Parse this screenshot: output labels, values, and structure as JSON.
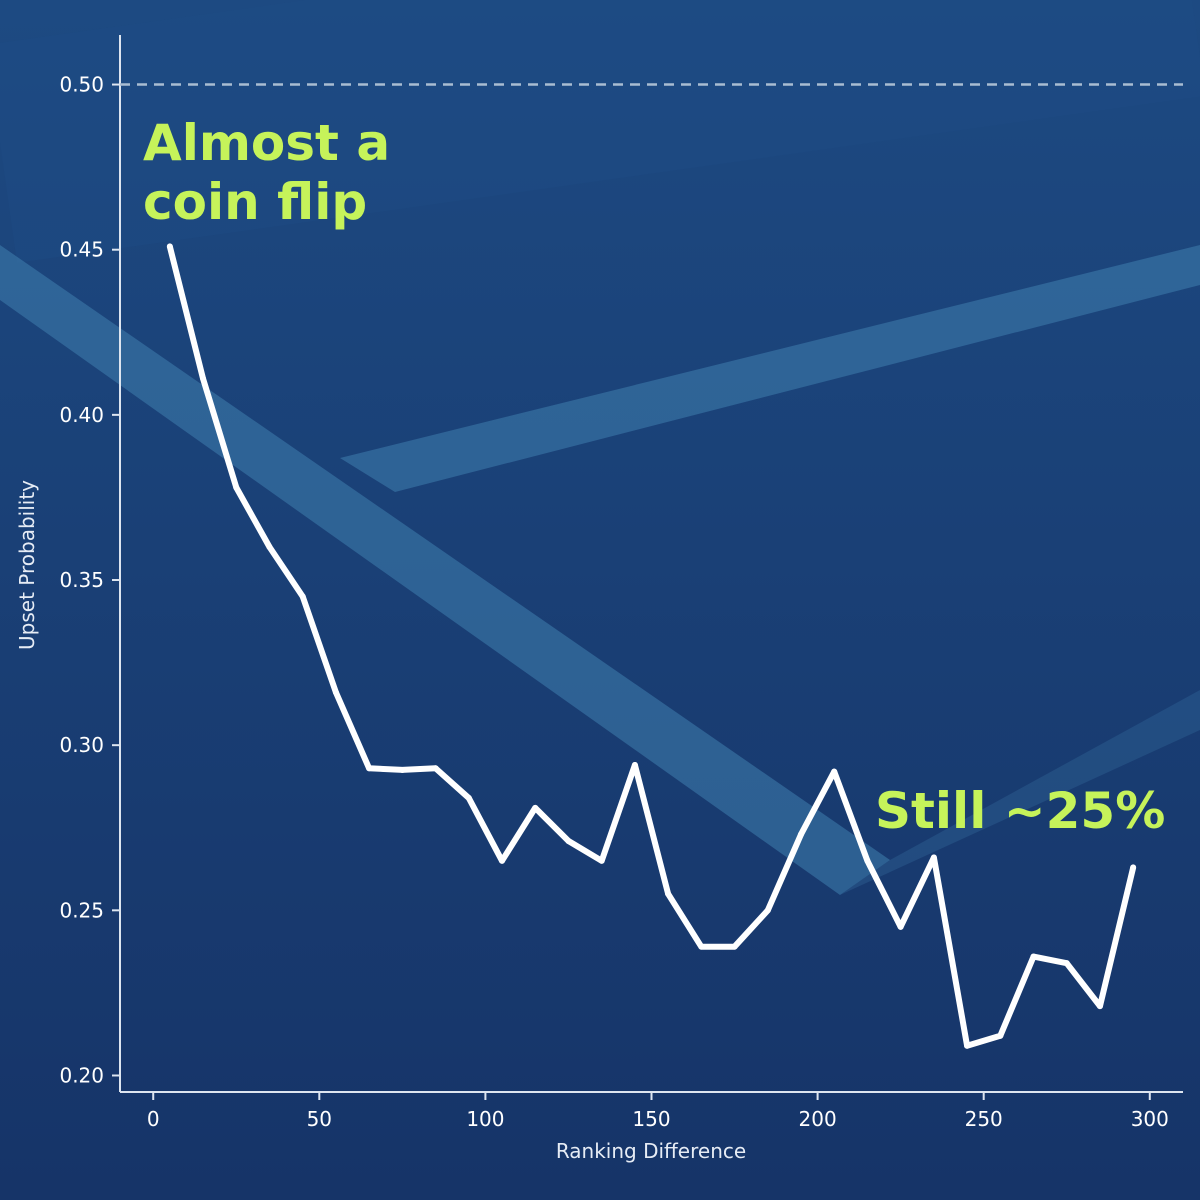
{
  "colors": {
    "background_top": "#1d4a82",
    "background_bottom": "#163468",
    "court_line": "#3f7fae",
    "line": "#ffffff",
    "axis": "#dde5f0",
    "reference_line": "#a9bdd2",
    "annotation": "#c6f35a"
  },
  "chart_data": {
    "type": "line",
    "title": "",
    "xlabel": "Ranking Difference",
    "ylabel": "Upset Probability",
    "xlim": [
      -10,
      310
    ],
    "ylim": [
      0.195,
      0.515
    ],
    "x_ticks": [
      0,
      50,
      100,
      150,
      200,
      250,
      300
    ],
    "x_tick_labels": [
      "0",
      "50",
      "100",
      "150",
      "200",
      "250",
      "300"
    ],
    "y_ticks": [
      0.2,
      0.25,
      0.3,
      0.35,
      0.4,
      0.45,
      0.5
    ],
    "y_tick_labels": [
      "0.20",
      "0.25",
      "0.30",
      "0.35",
      "0.40",
      "0.45",
      "0.50"
    ],
    "grid": false,
    "reference_line": {
      "y": 0.5,
      "style": "dashed"
    },
    "series": [
      {
        "x": [
          5,
          15,
          25,
          35,
          45,
          55,
          65,
          75,
          85,
          95,
          105,
          115,
          125,
          135,
          145,
          155,
          165,
          175,
          185,
          195,
          205,
          215,
          225,
          235,
          245,
          255,
          265,
          275,
          285,
          295
        ],
        "y": [
          0.451,
          0.411,
          0.378,
          0.36,
          0.345,
          0.316,
          0.293,
          0.2925,
          0.293,
          0.284,
          0.265,
          0.281,
          0.271,
          0.265,
          0.294,
          0.255,
          0.239,
          0.239,
          0.25,
          0.273,
          0.292,
          0.265,
          0.245,
          0.266,
          0.209,
          0.212,
          0.236,
          0.234,
          0.221,
          0.263
        ]
      }
    ],
    "annotations": [
      {
        "lines": [
          "Almost a",
          "coin flip"
        ],
        "position": "top-left"
      },
      {
        "lines": [
          "Still ~25%"
        ],
        "position": "right"
      }
    ]
  }
}
